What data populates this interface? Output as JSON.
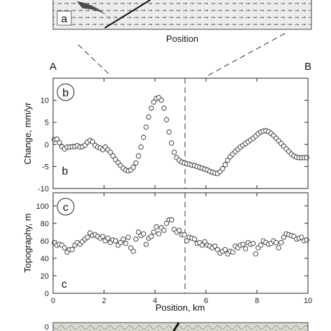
{
  "top_panel": {
    "letter": "a",
    "xlabel": "Position"
  },
  "profile_labels": {
    "start": "A",
    "end": "B"
  },
  "chart_data": [
    {
      "type": "scatter",
      "panel": "b",
      "panel_letter_circled": "b",
      "panel_letter_corner": "b",
      "ylabel": "Change, mm/yr",
      "xlabel": "",
      "xlim": [
        0,
        10
      ],
      "ylim": [
        -10,
        15
      ],
      "xticks": [
        0,
        2,
        4,
        6,
        8,
        10
      ],
      "yticks": [
        -10,
        -5,
        0,
        5,
        10
      ],
      "marker": "open-circle",
      "error_bars": true,
      "dashed_line_x": 5.2,
      "series": [
        {
          "x": [
            0.05,
            0.15,
            0.25,
            0.35,
            0.45,
            0.55,
            0.65,
            0.75,
            0.85,
            0.95,
            1.05,
            1.15,
            1.25,
            1.35,
            1.45,
            1.55,
            1.65,
            1.75,
            1.85,
            1.95,
            2.05,
            2.15,
            2.25,
            2.35,
            2.45,
            2.55,
            2.65,
            2.75,
            2.85,
            2.95,
            3.05,
            3.15,
            3.25,
            3.35,
            3.45,
            3.55,
            3.65,
            3.75,
            3.85,
            3.95,
            4.05,
            4.15,
            4.25,
            4.35,
            4.45,
            4.55,
            4.65,
            4.75,
            4.85,
            4.95,
            5.05,
            5.15,
            5.25,
            5.35,
            5.45,
            5.55,
            5.65,
            5.75,
            5.85,
            5.95,
            6.05,
            6.15,
            6.25,
            6.35,
            6.45,
            6.55,
            6.65,
            6.75,
            6.85,
            6.95,
            7.05,
            7.15,
            7.25,
            7.35,
            7.45,
            7.55,
            7.65,
            7.75,
            7.85,
            7.95,
            8.05,
            8.15,
            8.25,
            8.35,
            8.45,
            8.55,
            8.65,
            8.75,
            8.85,
            8.95,
            9.05,
            9.15,
            9.25,
            9.35,
            9.45,
            9.55,
            9.65,
            9.75,
            9.85,
            9.95
          ],
          "y": [
            1.1,
            1.2,
            0.4,
            -0.5,
            -1.0,
            -0.6,
            -0.6,
            -0.5,
            -0.5,
            -0.3,
            -0.6,
            -0.5,
            -0.2,
            0.5,
            0.9,
            0.6,
            -0.2,
            -0.6,
            -0.8,
            -1.2,
            -0.6,
            -1.2,
            -1.8,
            -2.6,
            -3.4,
            -4.1,
            -4.8,
            -5.4,
            -5.8,
            -6.0,
            -5.8,
            -5.2,
            -4.2,
            -2.6,
            -0.6,
            1.6,
            3.9,
            6.2,
            8.2,
            9.6,
            10.4,
            10.6,
            10.0,
            8.2,
            5.6,
            2.8,
            0.3,
            -1.8,
            -3.0,
            -3.6,
            -4.0,
            -4.2,
            -4.4,
            -4.5,
            -4.7,
            -4.8,
            -5.0,
            -5.2,
            -5.4,
            -5.6,
            -5.8,
            -6.1,
            -6.3,
            -6.5,
            -6.6,
            -6.2,
            -5.5,
            -4.6,
            -3.6,
            -2.8,
            -2.2,
            -1.6,
            -1.1,
            -0.6,
            -0.2,
            0.2,
            0.6,
            1.0,
            1.4,
            1.9,
            2.4,
            2.8,
            3.0,
            3.1,
            2.9,
            2.5,
            2.0,
            1.4,
            0.8,
            0.2,
            -0.4,
            -1.0,
            -1.6,
            -2.2,
            -2.6,
            -2.9,
            -3.0,
            -3.0,
            -3.0,
            -3.0
          ]
        }
      ]
    },
    {
      "type": "scatter",
      "panel": "c",
      "panel_letter_circled": "c",
      "panel_letter_corner": "c",
      "ylabel": "Topography, m",
      "xlabel": "Position, km",
      "xlim": [
        0,
        10
      ],
      "ylim": [
        0,
        115
      ],
      "xticks": [
        0,
        2,
        4,
        6,
        8,
        10
      ],
      "yticks": [
        0,
        20,
        40,
        60,
        80,
        100
      ],
      "marker": "open-circle",
      "dashed_line_x": 5.2,
      "series": [
        {
          "x": [
            0.05,
            0.15,
            0.25,
            0.35,
            0.45,
            0.55,
            0.65,
            0.75,
            0.85,
            0.95,
            1.05,
            1.15,
            1.25,
            1.35,
            1.45,
            1.55,
            1.65,
            1.75,
            1.85,
            1.95,
            2.05,
            2.15,
            2.25,
            2.35,
            2.45,
            2.55,
            2.65,
            2.75,
            2.85,
            2.95,
            3.05,
            3.15,
            3.25,
            3.35,
            3.45,
            3.55,
            3.65,
            3.75,
            3.85,
            3.95,
            4.05,
            4.15,
            4.25,
            4.35,
            4.45,
            4.55,
            4.65,
            4.75,
            4.85,
            4.95,
            5.05,
            5.15,
            5.25,
            5.35,
            5.45,
            5.55,
            5.65,
            5.75,
            5.85,
            5.95,
            6.05,
            6.15,
            6.25,
            6.35,
            6.45,
            6.55,
            6.65,
            6.75,
            6.85,
            6.95,
            7.05,
            7.15,
            7.25,
            7.35,
            7.45,
            7.55,
            7.65,
            7.75,
            7.85,
            7.95,
            8.05,
            8.15,
            8.25,
            8.35,
            8.45,
            8.55,
            8.65,
            8.75,
            8.85,
            8.95,
            9.05,
            9.15,
            9.25,
            9.35,
            9.45,
            9.55,
            9.65,
            9.75,
            9.85,
            9.95
          ],
          "y": [
            58,
            55,
            56,
            55,
            52,
            47,
            50,
            50,
            55,
            58,
            56,
            59,
            62,
            64,
            69,
            66,
            67,
            65,
            63,
            65,
            60,
            63,
            58,
            61,
            60,
            55,
            58,
            62,
            57,
            64,
            52,
            48,
            62,
            70,
            66,
            68,
            56,
            63,
            65,
            70,
            76,
            68,
            75,
            72,
            80,
            84,
            84,
            73,
            70,
            72,
            67,
            67,
            60,
            64,
            63,
            62,
            57,
            58,
            55,
            59,
            55,
            54,
            52,
            54,
            50,
            46,
            48,
            50,
            45,
            48,
            47,
            54,
            52,
            55,
            56,
            51,
            58,
            56,
            57,
            45,
            52,
            55,
            60,
            58,
            56,
            57,
            60,
            58,
            52,
            58,
            64,
            68,
            67,
            66,
            65,
            62,
            63,
            64,
            60,
            61
          ]
        }
      ]
    }
  ]
}
